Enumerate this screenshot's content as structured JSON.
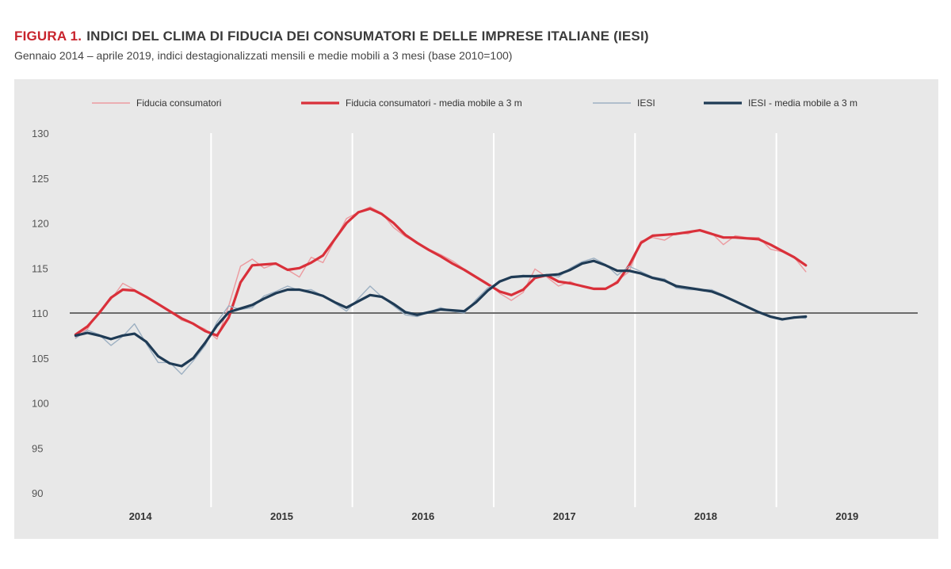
{
  "figure": {
    "label": "FIGURA 1.",
    "title": "INDICI DEL CLIMA DI FIDUCIA DEI CONSUMATORI E DELLE IMPRESE ITALIANE (IESI)",
    "subtitle": "Gennaio 2014 – aprile 2019, indici destagionalizzati mensili e medie mobili a 3 mesi (base 2010=100)"
  },
  "colors": {
    "background": "#e8e8e8",
    "consumer": "#d9303a",
    "consumer_light": "#ec9a9f",
    "iesi": "#1f3b55",
    "iesi_light": "#9db0c2",
    "zero_line": "#6b6b6b",
    "separator": "#ffffff"
  },
  "chart_data": {
    "type": "line",
    "title": "",
    "xlabel": "",
    "ylabel": "",
    "ylim": [
      90,
      130
    ],
    "y_ticks": [
      "130",
      "125",
      "120",
      "115",
      "110",
      "105",
      "100",
      "95",
      "90"
    ],
    "x_labels": [
      "2014",
      "2015",
      "2016",
      "2017",
      "2018",
      "2019"
    ],
    "legend_position": "top",
    "grid": false,
    "reference_line": 110,
    "series": [
      {
        "name": "Fiducia consumatori",
        "style": "thin",
        "color_key": "consumer_light",
        "values": [
          107.3,
          108.2,
          110.2,
          111.5,
          113.3,
          112.6,
          111.8,
          111.0,
          110.2,
          109.2,
          108.8,
          108.2,
          107.1,
          110.8,
          115.2,
          116.0,
          115.0,
          115.5,
          114.8,
          114.0,
          116.2,
          115.6,
          118.1,
          120.5,
          121.2,
          121.8,
          121.1,
          119.5,
          118.5,
          117.8,
          117.1,
          116.5,
          115.8,
          114.9,
          114.1,
          113.3,
          112.2,
          111.4,
          112.3,
          114.9,
          114.0,
          113.0,
          113.5,
          112.9,
          112.6,
          112.6,
          113.6,
          114.6,
          118.0,
          118.4,
          118.1,
          118.9,
          118.8,
          119.3,
          118.9,
          117.6,
          118.6,
          118.4,
          118.4,
          117.1,
          116.8,
          116.2,
          114.6
        ]
      },
      {
        "name": "Fiducia consumatori - media mobile a 3 m",
        "style": "thick",
        "color_key": "consumer",
        "values": [
          107.6,
          108.5,
          110.0,
          111.7,
          112.6,
          112.5,
          111.8,
          111.0,
          110.2,
          109.4,
          108.8,
          108.0,
          107.5,
          109.5,
          113.4,
          115.3,
          115.4,
          115.5,
          114.8,
          115.0,
          115.6,
          116.4,
          118.2,
          120.0,
          121.2,
          121.6,
          121.0,
          120.0,
          118.7,
          117.8,
          117.0,
          116.3,
          115.5,
          114.8,
          114.0,
          113.2,
          112.4,
          112.0,
          112.6,
          113.9,
          114.2,
          113.5,
          113.3,
          113.0,
          112.7,
          112.7,
          113.4,
          115.3,
          117.8,
          118.6,
          118.7,
          118.8,
          119.0,
          119.2,
          118.8,
          118.4,
          118.4,
          118.3,
          118.2,
          117.6,
          116.9,
          116.2,
          115.3
        ]
      },
      {
        "name": "IESI",
        "style": "thin",
        "color_key": "iesi_light",
        "values": [
          107.2,
          108.1,
          107.6,
          106.4,
          107.4,
          108.8,
          106.6,
          104.5,
          104.5,
          103.2,
          104.7,
          106.4,
          109.0,
          110.8,
          110.4,
          110.6,
          111.9,
          112.4,
          113.0,
          112.5,
          112.6,
          111.9,
          111.1,
          110.2,
          111.6,
          113.0,
          111.8,
          110.8,
          109.8,
          109.6,
          110.1,
          110.6,
          110.2,
          110.0,
          111.5,
          112.8,
          113.4,
          114.0,
          114.2,
          114.0,
          114.3,
          114.0,
          115.0,
          115.7,
          116.1,
          115.4,
          114.2,
          115.2,
          114.6,
          114.0,
          113.8,
          112.8,
          112.6,
          112.6,
          112.6,
          112.0,
          111.4,
          110.6,
          110.1,
          109.5,
          109.2,
          109.6,
          109.4
        ]
      },
      {
        "name": "IESI - media mobile a 3 m",
        "style": "thick",
        "color_key": "iesi",
        "values": [
          107.5,
          107.8,
          107.5,
          107.1,
          107.5,
          107.7,
          106.8,
          105.2,
          104.4,
          104.1,
          105.0,
          106.7,
          108.6,
          110.1,
          110.5,
          110.9,
          111.6,
          112.2,
          112.6,
          112.6,
          112.3,
          111.9,
          111.2,
          110.6,
          111.3,
          112.0,
          111.8,
          111.0,
          110.1,
          109.8,
          110.1,
          110.4,
          110.3,
          110.2,
          111.2,
          112.5,
          113.5,
          114.0,
          114.1,
          114.1,
          114.2,
          114.3,
          114.8,
          115.5,
          115.8,
          115.3,
          114.7,
          114.7,
          114.4,
          113.9,
          113.6,
          113.0,
          112.8,
          112.6,
          112.4,
          111.9,
          111.3,
          110.7,
          110.1,
          109.6,
          109.3,
          109.5,
          109.6
        ]
      }
    ]
  }
}
